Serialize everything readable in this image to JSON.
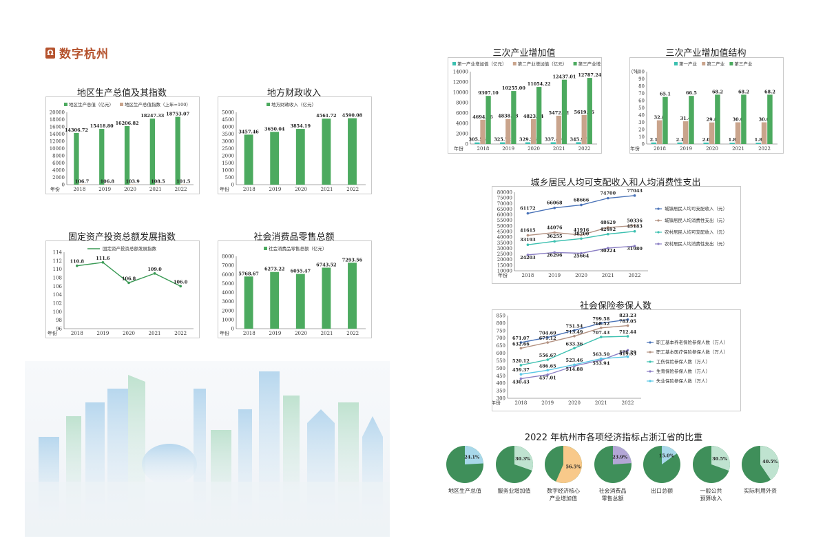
{
  "header": {
    "title": "数字杭州",
    "icon": "book-icon"
  },
  "colors": {
    "green": "#3a9a55",
    "tan": "#c9a48c",
    "teal": "#3cc0b0",
    "bar_green": "#4caa5f"
  },
  "gdp": {
    "title": "地区生产总值及其指数",
    "legend": [
      "地区生产总值（亿元）",
      "地区生产总值指数（上年=100）"
    ],
    "axis_label": "年份",
    "chart_data": {
      "type": "bar",
      "categories": [
        "2018",
        "2019",
        "2020",
        "2021",
        "2022"
      ],
      "ylim": [
        0,
        20000
      ],
      "yticks": [
        0,
        2000,
        4000,
        6000,
        8000,
        10000,
        12000,
        14000,
        16000,
        18000,
        20000
      ],
      "series": [
        {
          "name": "地区生产总值（亿元）",
          "values": [
            14306.72,
            15418.8,
            16206.82,
            18247.33,
            18753.07
          ]
        },
        {
          "name": "地区生产总值指数（上年=100）",
          "values": [
            106.7,
            106.8,
            103.9,
            108.5,
            101.5
          ]
        }
      ],
      "labels": [
        [
          "14306.72",
          "15418.80",
          "16206.82",
          "18247.33",
          "18753.07"
        ],
        [
          "106.7",
          "106.8",
          "103.9",
          "108.5",
          "101.5"
        ]
      ]
    }
  },
  "fiscal": {
    "title": "地方财政收入",
    "legend": [
      "地方财政收入（亿元）"
    ],
    "axis_label": "年份",
    "chart_data": {
      "type": "bar",
      "categories": [
        "2018",
        "2019",
        "2020",
        "2021",
        "2022"
      ],
      "ylim": [
        0,
        5000
      ],
      "yticks": [
        0,
        500,
        1000,
        1500,
        2000,
        2500,
        3000,
        3500,
        4000,
        4500,
        5000
      ],
      "series": [
        {
          "name": "地方财政收入（亿元）",
          "values": [
            3457.46,
            3650.04,
            3854.19,
            4561.72,
            4590.08
          ]
        }
      ],
      "labels": [
        [
          "3457.46",
          "3650.04",
          "3854.19",
          "4561.72",
          "4590.08"
        ]
      ]
    }
  },
  "fai": {
    "title": "固定资产投资总额发展指数",
    "legend": [
      "固定资产投资总额发展指数"
    ],
    "axis_label": "年份",
    "chart_data": {
      "type": "line",
      "categories": [
        "2018",
        "2019",
        "2020",
        "2021",
        "2022"
      ],
      "ylim": [
        96,
        114
      ],
      "yticks": [
        96,
        98,
        100,
        102,
        104,
        106,
        108,
        110,
        112,
        114
      ],
      "series": [
        {
          "name": "固定资产投资总额发展指数",
          "values": [
            110.8,
            111.6,
            106.8,
            109.0,
            106.0
          ]
        }
      ],
      "labels": [
        [
          "110.8",
          "111.6",
          "106.8",
          "109.0",
          "106.0"
        ]
      ]
    }
  },
  "retail": {
    "title": "社会消费品零售总额",
    "legend": [
      "社会消费品零售总额（亿元）"
    ],
    "axis_label": "年份",
    "chart_data": {
      "type": "bar",
      "categories": [
        "2018",
        "2019",
        "2020",
        "2021",
        "2022"
      ],
      "ylim": [
        0,
        8000
      ],
      "yticks": [
        0,
        1000,
        2000,
        3000,
        4000,
        5000,
        6000,
        7000,
        8000
      ],
      "series": [
        {
          "name": "社会消费品零售总额（亿元）",
          "values": [
            5768.67,
            6273.22,
            6055.47,
            6743.52,
            7293.56
          ]
        }
      ],
      "labels": [
        [
          "5768.67",
          "6273.22",
          "6055.47",
          "6743.52",
          "7293.56"
        ]
      ]
    }
  },
  "industry": {
    "title": "三次产业增加值",
    "legend": [
      "第一产业增加值（亿元）",
      "第二产业增加值（亿元）",
      "第三产业增加值（亿元）"
    ],
    "axis_label": "年份",
    "chart_data": {
      "type": "bar",
      "categories": [
        "2018",
        "2019",
        "2020",
        "2021",
        "2022"
      ],
      "ylim": [
        0,
        14000
      ],
      "yticks": [
        0,
        2000,
        4000,
        6000,
        8000,
        10000,
        12000,
        14000
      ],
      "series": [
        {
          "name": "第一产业增加值（亿元）",
          "values": [
            305.56,
            325.72,
            329.56,
            337.49,
            345.97
          ]
        },
        {
          "name": "第二产业增加值（亿元）",
          "values": [
            4694.06,
            4838.08,
            4823.04,
            5472.82,
            5619.86
          ]
        },
        {
          "name": "第三产业增加值（亿元）",
          "values": [
            9307.1,
            10255.0,
            11054.22,
            12437.01,
            12787.24
          ]
        }
      ],
      "labels": [
        [
          "305.56",
          "325.72",
          "329.56",
          "337.49",
          "345.97"
        ],
        [
          "4694.06",
          "4838.08",
          "4823.04",
          "5472.82",
          "5619.86"
        ],
        [
          "9307.10",
          "10255.00",
          "11054.22",
          "12437.01",
          "12787.24"
        ]
      ]
    }
  },
  "structure": {
    "title": "三次产业增加值结构",
    "legend": [
      "第一产业",
      "第二产业",
      "第三产业"
    ],
    "axis_label": "年份",
    "unit": "（%）",
    "chart_data": {
      "type": "bar",
      "categories": [
        "2018",
        "2019",
        "2020",
        "2021",
        "2022"
      ],
      "ylim": [
        0,
        100
      ],
      "yticks": [
        0,
        10,
        20,
        30,
        40,
        50,
        60,
        70,
        80,
        90,
        100
      ],
      "series": [
        {
          "name": "第一产业",
          "values": [
            2.1,
            2.1,
            2.0,
            1.8,
            1.8
          ]
        },
        {
          "name": "第二产业",
          "values": [
            32.8,
            31.4,
            29.8,
            30.0,
            30.0
          ]
        },
        {
          "name": "第三产业",
          "values": [
            65.1,
            66.5,
            68.2,
            68.2,
            68.2
          ]
        }
      ],
      "labels": [
        [
          "2.1",
          "2.1",
          "2.0",
          "1.8",
          "1.8"
        ],
        [
          "32.8",
          "31.4",
          "29.8",
          "30.0",
          "30.0"
        ],
        [
          "65.1",
          "66.5",
          "68.2",
          "68.2",
          "68.2"
        ]
      ]
    }
  },
  "income": {
    "title": "城乡居民人均可支配收入和人均消费性支出",
    "axis_label": "年份",
    "chart_data": {
      "type": "line",
      "categories": [
        "2018",
        "2019",
        "2020",
        "2021",
        "2022"
      ],
      "ylim": [
        10000,
        80000
      ],
      "yticks": [
        10000,
        15000,
        20000,
        25000,
        30000,
        35000,
        40000,
        45000,
        50000,
        55000,
        60000,
        65000,
        70000,
        75000,
        80000
      ],
      "series": [
        {
          "name": "城镇居民人均可支配收入（元）",
          "values": [
            61172,
            66068,
            68666,
            74700,
            77043
          ]
        },
        {
          "name": "城镇居民人均消费性支出（元）",
          "values": [
            41615,
            44076,
            41916,
            48629,
            50336
          ]
        },
        {
          "name": "农村居民人均可支配收入（元）",
          "values": [
            33193,
            36255,
            38700,
            42692,
            45183
          ]
        },
        {
          "name": "农村居民人均消费性支出（元）",
          "values": [
            24203,
            26296,
            25664,
            30224,
            31980
          ]
        }
      ],
      "labels": [
        [
          "61172",
          "66068",
          "68666",
          "74700",
          "77043"
        ],
        [
          "41615",
          "44076",
          "41916",
          "48629",
          "50336"
        ],
        [
          "33193",
          "36255",
          "38700",
          "42692",
          "45183"
        ],
        [
          "24203",
          "26296",
          "25664",
          "30224",
          "31980"
        ]
      ]
    }
  },
  "insurance": {
    "title": "社会保险参保人数",
    "axis_label": "年份",
    "chart_data": {
      "type": "line",
      "categories": [
        "2018",
        "2019",
        "2020",
        "2021",
        "2022"
      ],
      "ylim": [
        300,
        850
      ],
      "yticks": [
        300,
        350,
        400,
        450,
        500,
        550,
        600,
        650,
        700,
        750,
        800,
        850
      ],
      "series": [
        {
          "name": "职工基本养老保险参保人数（万人）",
          "values": [
            671.07,
            704.69,
            751.54,
            799.58,
            823.23
          ]
        },
        {
          "name": "职工基本医疗保险参保人数（万人）",
          "values": [
            632.66,
            671.12,
            713.49,
            768.52,
            783.05
          ]
        },
        {
          "name": "工伤保险参保人数（万人）",
          "values": [
            520.12,
            556.67,
            633.36,
            707.43,
            712.44
          ]
        },
        {
          "name": "生育保险参保人数（万人）",
          "values": [
            430.43,
            457.01,
            514.88,
            553.94,
            619.53
          ]
        },
        {
          "name": "失业保险参保人数（万人）",
          "values": [
            459.37,
            486.65,
            523.46,
            563.5,
            576.29
          ]
        }
      ],
      "labels": [
        [
          "671.07",
          "704.69",
          "751.54",
          "799.58",
          "823.23"
        ],
        [
          "632.66",
          "671.12",
          "713.49",
          "768.52",
          "783.05"
        ],
        [
          "520.12",
          "556.67",
          "633.36",
          "707.43",
          "712.44"
        ],
        [
          "430.43",
          "457.01",
          "514.88",
          "553.94",
          "619.53"
        ],
        [
          "459.37",
          "486.65",
          "523.46",
          "563.50",
          "576.29"
        ]
      ]
    }
  },
  "share": {
    "title": "2022 年杭州市各项经济指标占浙江省的比重",
    "chart_data": {
      "type": "pie",
      "items": [
        {
          "label": "地区生产总值",
          "value": 24.1,
          "text": "24.1%",
          "color": "#a8d8ea"
        },
        {
          "label": "服务业增加值",
          "value": 30.3,
          "text": "30.3%",
          "color": "#bfe3d0"
        },
        {
          "label": "数字经济核心\n产业增加值",
          "value": 56.5,
          "text": "56.5%",
          "color": "#f8c98a"
        },
        {
          "label": "社会消费品\n零售总额",
          "value": 23.9,
          "text": "23.9%",
          "color": "#b3a6d6"
        },
        {
          "label": "出口总额",
          "value": 15.0,
          "text": "15.0%",
          "color": "#a8d8ea"
        },
        {
          "label": "一般公共\n预算收入",
          "value": 30.5,
          "text": "30.5%",
          "color": "#bfe3d0"
        },
        {
          "label": "实际利用外资",
          "value": 40.5,
          "text": "40.5%",
          "color": "#bfe3d0"
        }
      ]
    }
  }
}
